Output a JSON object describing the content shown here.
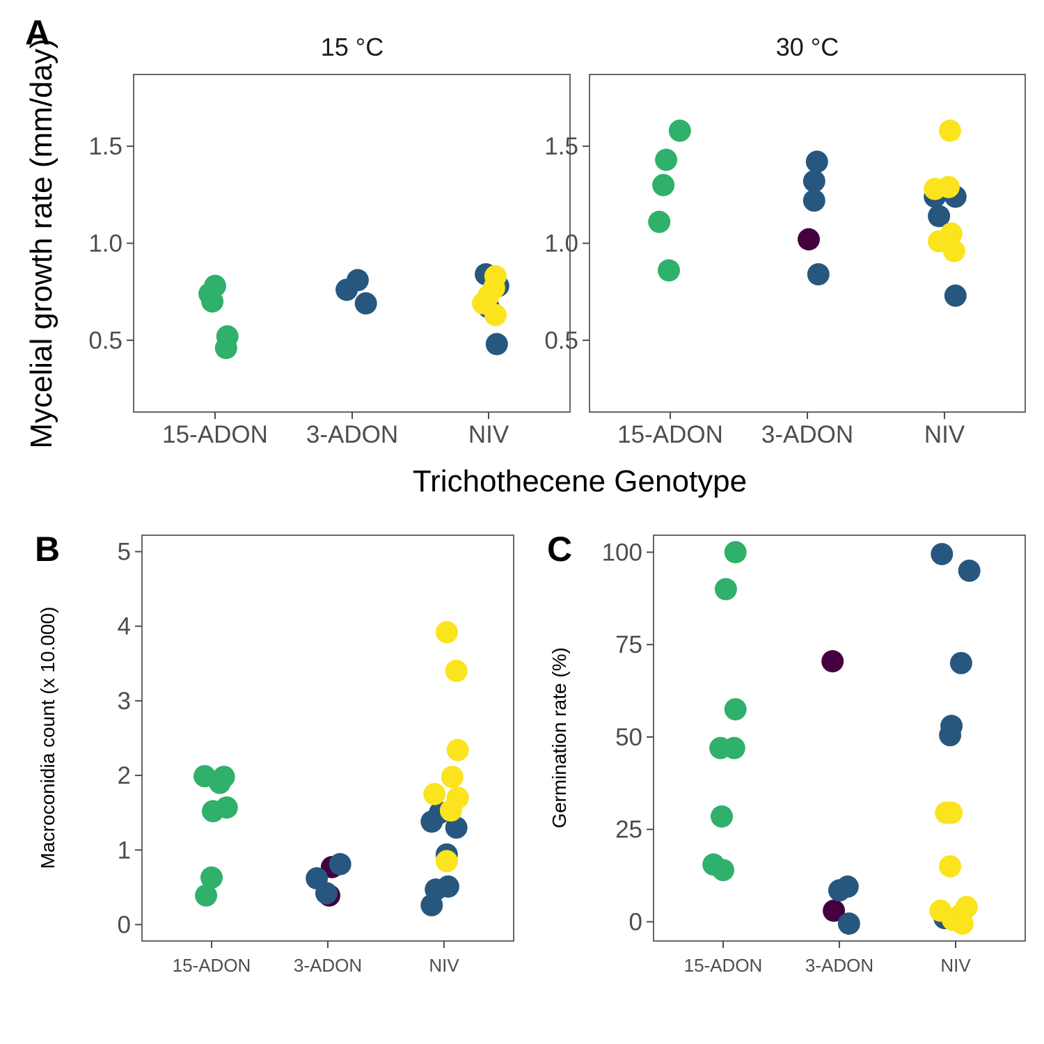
{
  "colors": {
    "green": "#2fb06b",
    "blue": "#27577e",
    "yellow": "#fbe31d",
    "purple": "#44003f"
  },
  "tags": {
    "A": "A",
    "B": "B",
    "C": "C"
  },
  "panel_a": {
    "ylabel": "Mycelial growth rate (mm/day)",
    "xlabel": "Trichothecene Genotype",
    "facets": [
      "15 °C",
      "30 °C"
    ]
  },
  "panel_b": {
    "ylabel": "Macroconidia count (x 10.000)"
  },
  "panel_c": {
    "ylabel": "Germination rate (%)"
  },
  "chart_data": [
    {
      "type": "scatter",
      "panel": "A",
      "facet": "15 °C",
      "categories": [
        "15-ADON",
        "3-ADON",
        "NIV"
      ],
      "ylim": [
        0.13,
        1.87
      ],
      "yticks": [
        0.5,
        1.0,
        1.5
      ],
      "ytick_labels": [
        "0.5",
        "1.0",
        "1.5"
      ],
      "ylabel": "Mycelial growth rate (mm/day)",
      "xlabel": "Trichothecene Genotype",
      "points": [
        {
          "category": "15-ADON",
          "dx": 0.0,
          "y": 0.78,
          "color": "green"
        },
        {
          "category": "15-ADON",
          "dx": -0.04,
          "y": 0.74,
          "color": "green"
        },
        {
          "category": "15-ADON",
          "dx": -0.02,
          "y": 0.7,
          "color": "green"
        },
        {
          "category": "15-ADON",
          "dx": 0.09,
          "y": 0.52,
          "color": "green"
        },
        {
          "category": "15-ADON",
          "dx": 0.08,
          "y": 0.46,
          "color": "green"
        },
        {
          "category": "3-ADON",
          "dx": 0.04,
          "y": 0.81,
          "color": "blue"
        },
        {
          "category": "3-ADON",
          "dx": -0.04,
          "y": 0.76,
          "color": "blue"
        },
        {
          "category": "3-ADON",
          "dx": 0.1,
          "y": 0.69,
          "color": "blue"
        },
        {
          "category": "NIV",
          "dx": -0.02,
          "y": 0.84,
          "color": "blue"
        },
        {
          "category": "NIV",
          "dx": 0.07,
          "y": 0.78,
          "color": "blue"
        },
        {
          "category": "NIV",
          "dx": 0.0,
          "y": 0.67,
          "color": "blue"
        },
        {
          "category": "NIV",
          "dx": 0.06,
          "y": 0.48,
          "color": "blue"
        },
        {
          "category": "NIV",
          "dx": 0.05,
          "y": 0.83,
          "color": "yellow"
        },
        {
          "category": "NIV",
          "dx": 0.04,
          "y": 0.77,
          "color": "yellow"
        },
        {
          "category": "NIV",
          "dx": 0.0,
          "y": 0.73,
          "color": "yellow"
        },
        {
          "category": "NIV",
          "dx": -0.04,
          "y": 0.69,
          "color": "yellow"
        },
        {
          "category": "NIV",
          "dx": 0.05,
          "y": 0.63,
          "color": "yellow"
        }
      ]
    },
    {
      "type": "scatter",
      "panel": "A",
      "facet": "30 °C",
      "categories": [
        "15-ADON",
        "3-ADON",
        "NIV"
      ],
      "ylim": [
        0.13,
        1.87
      ],
      "yticks": [
        0.5,
        1.0,
        1.5
      ],
      "ytick_labels": [
        "0.5",
        "1.0",
        "1.5"
      ],
      "points": [
        {
          "category": "15-ADON",
          "dx": 0.07,
          "y": 1.58,
          "color": "green"
        },
        {
          "category": "15-ADON",
          "dx": -0.03,
          "y": 1.43,
          "color": "green"
        },
        {
          "category": "15-ADON",
          "dx": -0.05,
          "y": 1.3,
          "color": "green"
        },
        {
          "category": "15-ADON",
          "dx": -0.08,
          "y": 1.11,
          "color": "green"
        },
        {
          "category": "15-ADON",
          "dx": -0.01,
          "y": 0.86,
          "color": "green"
        },
        {
          "category": "3-ADON",
          "dx": 0.07,
          "y": 1.42,
          "color": "blue"
        },
        {
          "category": "3-ADON",
          "dx": 0.05,
          "y": 1.32,
          "color": "blue"
        },
        {
          "category": "3-ADON",
          "dx": 0.05,
          "y": 1.22,
          "color": "blue"
        },
        {
          "category": "3-ADON",
          "dx": 0.08,
          "y": 0.84,
          "color": "blue"
        },
        {
          "category": "3-ADON",
          "dx": 0.01,
          "y": 1.02,
          "color": "purple"
        },
        {
          "category": "NIV",
          "dx": -0.07,
          "y": 1.24,
          "color": "blue"
        },
        {
          "category": "NIV",
          "dx": 0.08,
          "y": 1.24,
          "color": "blue"
        },
        {
          "category": "NIV",
          "dx": -0.04,
          "y": 1.14,
          "color": "blue"
        },
        {
          "category": "NIV",
          "dx": 0.08,
          "y": 0.73,
          "color": "blue"
        },
        {
          "category": "NIV",
          "dx": 0.04,
          "y": 1.58,
          "color": "yellow"
        },
        {
          "category": "NIV",
          "dx": -0.07,
          "y": 1.28,
          "color": "yellow"
        },
        {
          "category": "NIV",
          "dx": 0.03,
          "y": 1.29,
          "color": "yellow"
        },
        {
          "category": "NIV",
          "dx": 0.05,
          "y": 1.05,
          "color": "yellow"
        },
        {
          "category": "NIV",
          "dx": -0.04,
          "y": 1.01,
          "color": "yellow"
        },
        {
          "category": "NIV",
          "dx": 0.07,
          "y": 0.96,
          "color": "yellow"
        }
      ]
    },
    {
      "type": "scatter",
      "panel": "B",
      "categories": [
        "15-ADON",
        "3-ADON",
        "NIV"
      ],
      "ylim": [
        -0.22,
        5.22
      ],
      "yticks": [
        0,
        1,
        2,
        3,
        4,
        5
      ],
      "ytick_labels": [
        "0",
        "1",
        "2",
        "3",
        "4",
        "5"
      ],
      "ylabel": "Macroconidia count (x 10.000)",
      "points": [
        {
          "category": "15-ADON",
          "dx": -0.05,
          "y": 1.99,
          "color": "green"
        },
        {
          "category": "15-ADON",
          "dx": 0.09,
          "y": 1.98,
          "color": "green"
        },
        {
          "category": "15-ADON",
          "dx": 0.06,
          "y": 1.9,
          "color": "green"
        },
        {
          "category": "15-ADON",
          "dx": 0.11,
          "y": 1.57,
          "color": "green"
        },
        {
          "category": "15-ADON",
          "dx": 0.01,
          "y": 1.52,
          "color": "green"
        },
        {
          "category": "15-ADON",
          "dx": 0.0,
          "y": 0.63,
          "color": "green"
        },
        {
          "category": "15-ADON",
          "dx": -0.04,
          "y": 0.39,
          "color": "green"
        },
        {
          "category": "3-ADON",
          "dx": 0.03,
          "y": 0.77,
          "color": "purple"
        },
        {
          "category": "3-ADON",
          "dx": 0.01,
          "y": 0.39,
          "color": "purple"
        },
        {
          "category": "3-ADON",
          "dx": 0.09,
          "y": 0.81,
          "color": "blue"
        },
        {
          "category": "3-ADON",
          "dx": -0.08,
          "y": 0.62,
          "color": "blue"
        },
        {
          "category": "3-ADON",
          "dx": -0.01,
          "y": 0.42,
          "color": "blue"
        },
        {
          "category": "NIV",
          "dx": -0.03,
          "y": 1.5,
          "color": "blue"
        },
        {
          "category": "NIV",
          "dx": -0.09,
          "y": 1.38,
          "color": "blue"
        },
        {
          "category": "NIV",
          "dx": 0.09,
          "y": 1.3,
          "color": "blue"
        },
        {
          "category": "NIV",
          "dx": 0.02,
          "y": 0.94,
          "color": "blue"
        },
        {
          "category": "NIV",
          "dx": 0.03,
          "y": 0.51,
          "color": "blue"
        },
        {
          "category": "NIV",
          "dx": -0.06,
          "y": 0.47,
          "color": "blue"
        },
        {
          "category": "NIV",
          "dx": -0.09,
          "y": 0.26,
          "color": "blue"
        },
        {
          "category": "NIV",
          "dx": 0.02,
          "y": 3.92,
          "color": "yellow"
        },
        {
          "category": "NIV",
          "dx": 0.09,
          "y": 3.4,
          "color": "yellow"
        },
        {
          "category": "NIV",
          "dx": 0.1,
          "y": 2.34,
          "color": "yellow"
        },
        {
          "category": "NIV",
          "dx": 0.06,
          "y": 1.98,
          "color": "yellow"
        },
        {
          "category": "NIV",
          "dx": -0.07,
          "y": 1.75,
          "color": "yellow"
        },
        {
          "category": "NIV",
          "dx": 0.1,
          "y": 1.7,
          "color": "yellow"
        },
        {
          "category": "NIV",
          "dx": 0.05,
          "y": 1.53,
          "color": "yellow"
        },
        {
          "category": "NIV",
          "dx": 0.02,
          "y": 0.85,
          "color": "yellow"
        }
      ]
    },
    {
      "type": "scatter",
      "panel": "C",
      "categories": [
        "15-ADON",
        "3-ADON",
        "NIV"
      ],
      "ylim": [
        -5.2,
        104.6
      ],
      "yticks": [
        0,
        25,
        50,
        75,
        100
      ],
      "ytick_labels": [
        "0",
        "25",
        "50",
        "75",
        "100"
      ],
      "ylabel": "Germination rate (%)",
      "points": [
        {
          "category": "15-ADON",
          "dx": 0.09,
          "y": 100,
          "color": "green"
        },
        {
          "category": "15-ADON",
          "dx": 0.02,
          "y": 90,
          "color": "green"
        },
        {
          "category": "15-ADON",
          "dx": 0.09,
          "y": 57.5,
          "color": "green"
        },
        {
          "category": "15-ADON",
          "dx": -0.02,
          "y": 47,
          "color": "green"
        },
        {
          "category": "15-ADON",
          "dx": 0.08,
          "y": 47,
          "color": "green"
        },
        {
          "category": "15-ADON",
          "dx": -0.01,
          "y": 28.5,
          "color": "green"
        },
        {
          "category": "15-ADON",
          "dx": -0.07,
          "y": 15.5,
          "color": "green"
        },
        {
          "category": "15-ADON",
          "dx": 0.0,
          "y": 14,
          "color": "green"
        },
        {
          "category": "3-ADON",
          "dx": -0.05,
          "y": 70.5,
          "color": "purple"
        },
        {
          "category": "3-ADON",
          "dx": -0.04,
          "y": 3,
          "color": "purple"
        },
        {
          "category": "3-ADON",
          "dx": 0.0,
          "y": 8.5,
          "color": "blue"
        },
        {
          "category": "3-ADON",
          "dx": 0.06,
          "y": 9.5,
          "color": "blue"
        },
        {
          "category": "3-ADON",
          "dx": 0.07,
          "y": -0.5,
          "color": "blue"
        },
        {
          "category": "NIV",
          "dx": -0.1,
          "y": 99.5,
          "color": "blue"
        },
        {
          "category": "NIV",
          "dx": 0.1,
          "y": 95,
          "color": "blue"
        },
        {
          "category": "NIV",
          "dx": 0.04,
          "y": 70,
          "color": "blue"
        },
        {
          "category": "NIV",
          "dx": -0.03,
          "y": 53,
          "color": "blue"
        },
        {
          "category": "NIV",
          "dx": -0.04,
          "y": 50.5,
          "color": "blue"
        },
        {
          "category": "NIV",
          "dx": -0.08,
          "y": 1,
          "color": "blue"
        },
        {
          "category": "NIV",
          "dx": -0.07,
          "y": 29.5,
          "color": "yellow"
        },
        {
          "category": "NIV",
          "dx": -0.03,
          "y": 29.5,
          "color": "yellow"
        },
        {
          "category": "NIV",
          "dx": -0.04,
          "y": 15,
          "color": "yellow"
        },
        {
          "category": "NIV",
          "dx": -0.11,
          "y": 3,
          "color": "yellow"
        },
        {
          "category": "NIV",
          "dx": 0.08,
          "y": 4,
          "color": "yellow"
        },
        {
          "category": "NIV",
          "dx": 0.04,
          "y": 2,
          "color": "yellow"
        },
        {
          "category": "NIV",
          "dx": -0.02,
          "y": 0.5,
          "color": "yellow"
        },
        {
          "category": "NIV",
          "dx": 0.05,
          "y": -0.5,
          "color": "yellow"
        }
      ]
    }
  ]
}
